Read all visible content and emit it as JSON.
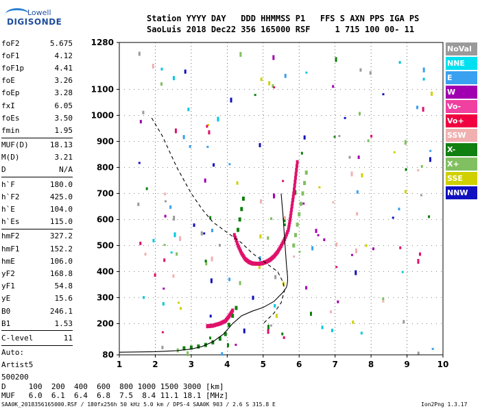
{
  "brand": {
    "line1": "Lowell",
    "line2": "DIGISONDE"
  },
  "header": {
    "row1": "Station YYYY DAY   DDD HHMMSS P1   FFS S AXN PPS IGA PS",
    "row2": "SaoLuis 2018 Dec22 356 165000 RSF     1 715 100 00- 11"
  },
  "params": {
    "group1": [
      {
        "label": "foF2",
        "value": "5.675"
      },
      {
        "label": "foF1",
        "value": "4.12"
      },
      {
        "label": "foF1p",
        "value": "4.41"
      },
      {
        "label": "foE",
        "value": "3.26"
      },
      {
        "label": "foEp",
        "value": "3.28"
      },
      {
        "label": "fxI",
        "value": "6.05"
      },
      {
        "label": "foEs",
        "value": "3.50"
      },
      {
        "label": "fmin",
        "value": "1.95"
      }
    ],
    "group2": [
      {
        "label": "MUF(D)",
        "value": "18.13"
      },
      {
        "label": "M(D)",
        "value": "3.21"
      },
      {
        "label": "D",
        "value": "N/A"
      }
    ],
    "group3": [
      {
        "label": "h`F",
        "value": "180.0"
      },
      {
        "label": "h`F2",
        "value": "425.0"
      },
      {
        "label": "h`E",
        "value": "104.0"
      },
      {
        "label": "h`Es",
        "value": "115.0"
      }
    ],
    "group4": [
      {
        "label": "hmF2",
        "value": "327.2"
      },
      {
        "label": "hmF1",
        "value": "152.2"
      },
      {
        "label": "hmE",
        "value": "106.0"
      },
      {
        "label": "yF2",
        "value": "168.8"
      },
      {
        "label": "yF1",
        "value": "54.8"
      },
      {
        "label": "yE",
        "value": "15.6"
      },
      {
        "label": "B0",
        "value": "246.1"
      },
      {
        "label": "B1",
        "value": "1.53"
      }
    ],
    "group5": [
      {
        "label": "C-level",
        "value": "11"
      }
    ],
    "auto": [
      "Auto:",
      "Artist5",
      "500200"
    ]
  },
  "legend": [
    {
      "label": "NoVal",
      "color": "#9a9a9a"
    },
    {
      "label": "NNE",
      "color": "#00e0f0"
    },
    {
      "label": "E",
      "color": "#3aa0f0"
    },
    {
      "label": "W",
      "color": "#a000b0"
    },
    {
      "label": "Vo-",
      "color": "#f040a0"
    },
    {
      "label": "Vo+",
      "color": "#f00040"
    },
    {
      "label": "SSW",
      "color": "#f0b0b0"
    },
    {
      "label": "X-",
      "color": "#108010"
    },
    {
      "label": "X+",
      "color": "#80c060"
    },
    {
      "label": "SSE",
      "color": "#d0d000"
    },
    {
      "label": "NNW",
      "color": "#1010c0"
    }
  ],
  "muf_table": {
    "row1": "D     100  200  400  600  800 1000 1500 3000 [km]",
    "row2": "MUF   6.0  6.1  6.4  6.8  7.5  8.4 11.1 18.1 [MHz]"
  },
  "footer": {
    "left": "SAA0K_2018356165000.RSF / 180fx256h 50 kHz 5.0 km / DPS-4 SAA0K 903 / 2.6 S 315.8 E",
    "right": "Ion2Png 1.3.17"
  },
  "chart_data": {
    "type": "scatter",
    "xlabel": "",
    "ylabel": "",
    "xlim": [
      1,
      10
    ],
    "ylim": [
      80,
      1280
    ],
    "x_ticks": [
      "1",
      "2",
      "3",
      "4",
      "5",
      "6",
      "7",
      "8",
      "9",
      "10"
    ],
    "y_ticks": [
      "80",
      "200",
      "300",
      "400",
      "500",
      "600",
      "700",
      "800",
      "900",
      "1000",
      "1100",
      "1280"
    ],
    "series": [
      {
        "name": "Vo+",
        "color": "#e0106a",
        "x": [
          3.45,
          3.6,
          3.8,
          3.95,
          4.05,
          4.15,
          4.2,
          4.3,
          4.4,
          4.5,
          4.6,
          4.7,
          4.8,
          4.9,
          5.0,
          5.1,
          5.2,
          5.3,
          5.4,
          5.5,
          5.6,
          5.7,
          5.75,
          5.8,
          5.85,
          5.9,
          5.95
        ],
        "y": [
          190,
          192,
          200,
          210,
          228,
          250,
          540,
          500,
          470,
          448,
          437,
          431,
          430,
          430,
          433,
          438,
          446,
          458,
          475,
          498,
          525,
          560,
          600,
          650,
          700,
          760,
          820
        ]
      },
      {
        "name": "X-",
        "color": "#108010",
        "x": [
          2.8,
          3.0,
          3.2,
          3.4,
          3.6,
          3.8,
          3.95,
          4.05,
          4.15,
          4.25,
          4.3,
          4.35,
          4.4,
          4.45
        ],
        "y": [
          105,
          108,
          112,
          118,
          128,
          142,
          160,
          195,
          230,
          260,
          560,
          600,
          640,
          680
        ]
      },
      {
        "name": "X+",
        "color": "#80c060",
        "x": [
          5.85,
          5.9,
          5.95,
          6.0,
          6.05,
          6.1,
          6.15,
          6.2
        ],
        "y": [
          500,
          540,
          580,
          620,
          660,
          700,
          740,
          780
        ]
      }
    ],
    "lines": [
      {
        "name": "profile",
        "style": "solid",
        "x": [
          1.0,
          2.0,
          2.6,
          3.0,
          3.3,
          3.6,
          3.9,
          4.15,
          4.4,
          4.7,
          5.0,
          5.3,
          5.55,
          5.65,
          5.68,
          5.68,
          5.65,
          5.6,
          5.55,
          5.5
        ],
        "y": [
          90,
          92,
          96,
          102,
          112,
          130,
          160,
          200,
          230,
          248,
          262,
          285,
          320,
          340,
          360,
          380,
          420,
          520,
          620,
          700
        ]
      },
      {
        "name": "hmF-model",
        "style": "dashed",
        "x": [
          1.9,
          2.2,
          2.6,
          3.0,
          3.3,
          3.6,
          4.0,
          4.4,
          4.7,
          5.0,
          5.2,
          5.4,
          5.55,
          5.6,
          5.5,
          5.3,
          5.0
        ],
        "y": [
          990,
          920,
          800,
          700,
          640,
          590,
          550,
          510,
          470,
          440,
          420,
          400,
          360,
          330,
          280,
          240,
          200
        ]
      }
    ]
  }
}
